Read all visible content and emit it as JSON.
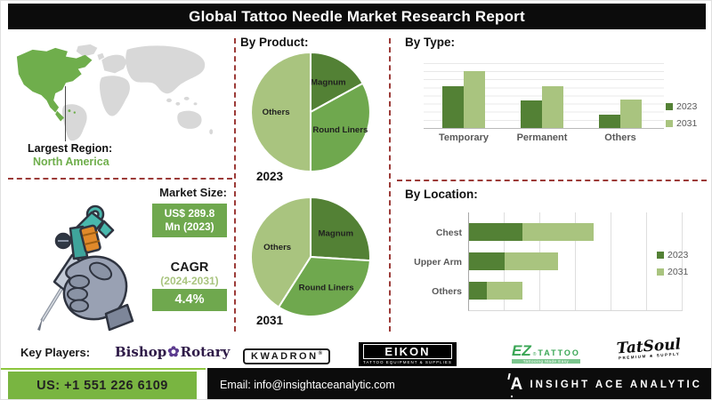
{
  "title": "Global Tattoo Needle Market Research Report",
  "colors": {
    "dark_green": "#538135",
    "mid_green": "#6fa84e",
    "light_green": "#a9c47f",
    "map_green": "#6fae4c",
    "map_gray": "#d8d8d8",
    "divider_maroon": "#9c3b38",
    "footer_green": "#79b541",
    "footer_line_green": "#8dc63f",
    "bar_black": "#0c0c0c"
  },
  "region": {
    "label": "Largest Region:",
    "value": "North America"
  },
  "market_size": {
    "label": "Market Size:",
    "value_line1": "US$ 289.8",
    "value_line2": "Mn (2023)",
    "cagr_label": "CAGR",
    "cagr_period": "(2024-2031)",
    "cagr_value": "4.4%"
  },
  "chart_data": [
    {
      "name": "by_product_2023",
      "type": "pie",
      "title": "By Product:",
      "year_label": "2023",
      "slices": [
        {
          "label": "Magnum",
          "value": 17,
          "color": "#538135"
        },
        {
          "label": "Round Liners",
          "value": 33,
          "color": "#6fa84e"
        },
        {
          "label": "Others",
          "value": 50,
          "color": "#a9c47f"
        }
      ]
    },
    {
      "name": "by_product_2031",
      "type": "pie",
      "year_label": "2031",
      "slices": [
        {
          "label": "Magnum",
          "value": 26,
          "color": "#538135"
        },
        {
          "label": "Round Liners",
          "value": 33,
          "color": "#6fa84e"
        },
        {
          "label": "Others",
          "value": 41,
          "color": "#a9c47f"
        }
      ]
    },
    {
      "name": "by_type",
      "type": "bar",
      "title": "By Type:",
      "categories": [
        "Temporary",
        "Permanent",
        "Others"
      ],
      "series": [
        {
          "name": "2023",
          "color": "#538135",
          "values": [
            65,
            43,
            21
          ]
        },
        {
          "name": "2031",
          "color": "#a9c47f",
          "values": [
            88,
            64,
            44
          ]
        }
      ],
      "ylim": [
        0,
        100
      ],
      "grid": true,
      "legend_position": "right"
    },
    {
      "name": "by_location",
      "type": "bar",
      "orientation": "horizontal-stacked",
      "title": "By Location:",
      "categories": [
        "Chest",
        "Upper Arm",
        "Others"
      ],
      "series": [
        {
          "name": "2023",
          "color": "#538135",
          "values": [
            1.5,
            1.0,
            0.5
          ]
        },
        {
          "name": "2031",
          "color": "#a9c47f",
          "values": [
            2.0,
            1.5,
            1.0
          ]
        }
      ],
      "xlim": [
        0,
        6
      ],
      "grid": true,
      "legend_position": "right"
    }
  ],
  "key_players": {
    "label": "Key Players:",
    "logos": [
      {
        "name": "Bishop Rotary",
        "text1": "Bishop",
        "ornament": "✿",
        "text2": "Rotary"
      },
      {
        "name": "KWADRON",
        "text": "KWADRON",
        "reg": "®"
      },
      {
        "name": "EIKON",
        "text": "EIKON",
        "subtext": "TATTOO EQUIPMENT & SUPPLIES"
      },
      {
        "name": "EZ Tattoo",
        "text1": "EZ",
        "reg": "®",
        "text2": "TATTOO",
        "tagline": "Tattooing Made Easy"
      },
      {
        "name": "TatSoul",
        "text": "TatSoul",
        "subtext": "PREMIUM ★ SUPPLY"
      }
    ]
  },
  "footer": {
    "phone": "US: +1 551 226 6109",
    "email": "Email: info@insightaceanalytic.com",
    "brand": "INSIGHT ACE ANALYTIC"
  }
}
